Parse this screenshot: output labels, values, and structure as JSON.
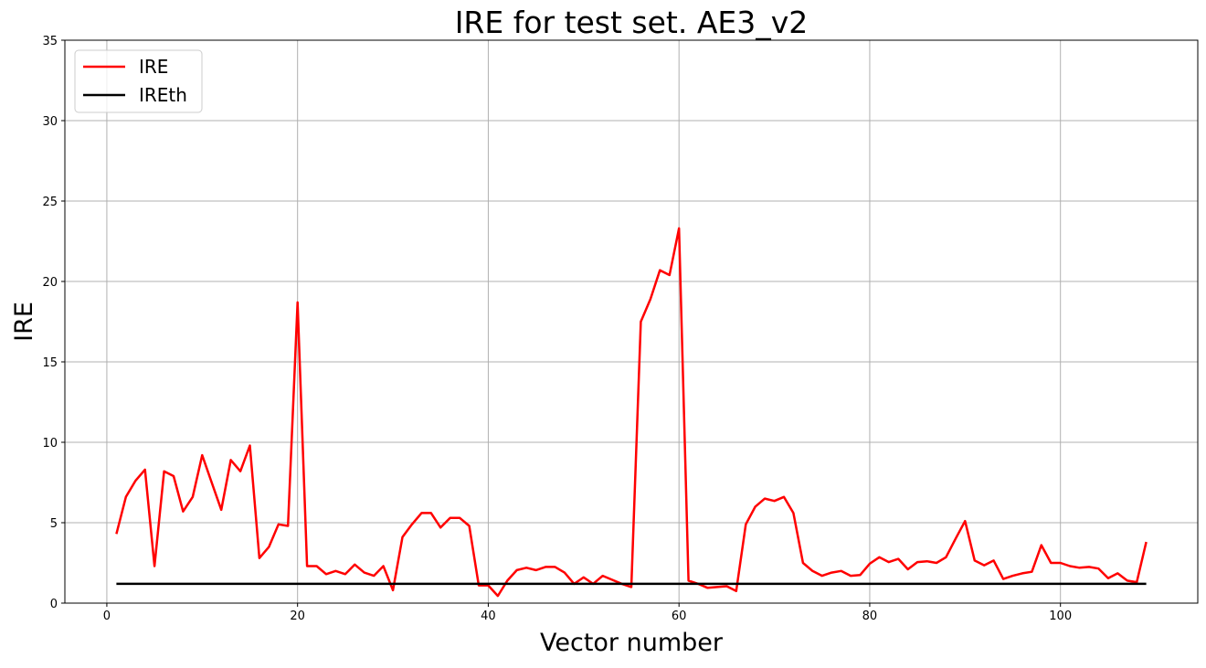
{
  "chart_data": {
    "type": "line",
    "title": "IRE for test set. AE3_v2",
    "xlabel": "Vector number",
    "ylabel": "IRE",
    "xlim": [
      -4.4,
      114.4
    ],
    "ylim": [
      0,
      35
    ],
    "xticks": [
      0,
      20,
      40,
      60,
      80,
      100
    ],
    "yticks": [
      0,
      5,
      10,
      15,
      20,
      25,
      30,
      35
    ],
    "grid": true,
    "legend_position": "top-left",
    "series": [
      {
        "name": "IRE",
        "color": "#ff0000",
        "x": [
          1,
          2,
          3,
          4,
          5,
          6,
          7,
          8,
          9,
          10,
          11,
          12,
          13,
          14,
          15,
          16,
          17,
          18,
          19,
          20,
          21,
          22,
          23,
          24,
          25,
          26,
          27,
          28,
          29,
          30,
          31,
          32,
          33,
          34,
          35,
          36,
          37,
          38,
          39,
          40,
          41,
          42,
          43,
          44,
          45,
          46,
          47,
          48,
          49,
          50,
          51,
          52,
          53,
          54,
          55,
          56,
          57,
          58,
          59,
          60,
          61,
          62,
          63,
          64,
          65,
          66,
          67,
          68,
          69,
          70,
          71,
          72,
          73,
          74,
          75,
          76,
          77,
          78,
          79,
          80,
          81,
          82,
          83,
          84,
          85,
          86,
          87,
          88,
          89,
          90,
          91,
          92,
          93,
          94,
          95,
          96,
          97,
          98,
          99,
          100,
          101,
          102,
          103,
          104,
          105,
          106,
          107,
          108,
          109
        ],
        "values": [
          4.3,
          6.6,
          7.6,
          8.3,
          2.3,
          8.2,
          7.9,
          5.7,
          6.6,
          9.2,
          7.5,
          5.8,
          8.9,
          8.2,
          9.8,
          2.8,
          3.5,
          4.9,
          4.8,
          18.7,
          2.3,
          2.3,
          1.8,
          2.0,
          1.8,
          2.4,
          1.9,
          1.7,
          2.3,
          0.8,
          4.1,
          4.9,
          5.6,
          5.6,
          4.7,
          5.3,
          5.3,
          4.8,
          1.1,
          1.1,
          0.45,
          1.4,
          2.05,
          2.2,
          2.05,
          2.25,
          2.25,
          1.9,
          1.2,
          1.6,
          1.2,
          1.7,
          1.45,
          1.2,
          1.0,
          17.5,
          18.9,
          20.7,
          20.4,
          23.3,
          1.4,
          1.2,
          0.95,
          1.0,
          1.05,
          0.75,
          4.9,
          6.0,
          6.5,
          6.35,
          6.6,
          5.6,
          2.5,
          2.0,
          1.7,
          1.9,
          2.0,
          1.7,
          1.75,
          2.45,
          2.85,
          2.55,
          2.75,
          2.1,
          2.55,
          2.6,
          2.5,
          2.85,
          4.0,
          5.1,
          2.65,
          2.35,
          2.65,
          1.5,
          1.7,
          1.85,
          1.95,
          3.6,
          2.5,
          2.5,
          2.3,
          2.2,
          2.25,
          2.15,
          1.55,
          1.85,
          1.4,
          1.3,
          3.8
        ]
      },
      {
        "name": "IREth",
        "color": "#000000",
        "x": [
          1,
          109
        ],
        "values": [
          1.2,
          1.2
        ]
      }
    ]
  }
}
